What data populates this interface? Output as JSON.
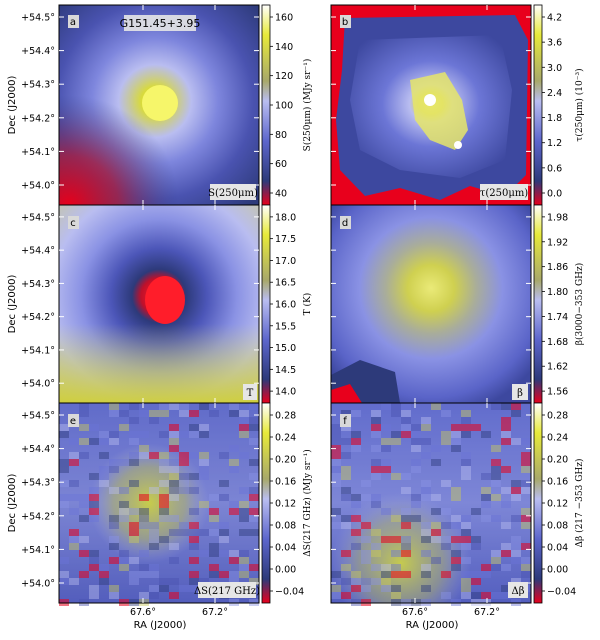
{
  "figure": {
    "source_label": "G151.45+3.95",
    "axes": {
      "ra_label": "RA (J2000)",
      "dec_label": "Dec (J2000)",
      "ra_ticks": [
        "67.6°",
        "67.2°"
      ],
      "dec_ticks": [
        "+54.5°",
        "+54.4°",
        "+54.3°",
        "+54.2°",
        "+54.1°",
        "+54.0°"
      ]
    },
    "panels": [
      {
        "id": "a",
        "letter": "a",
        "corner_label": "S(250μm)",
        "colorbar_label": "S(250μm) (MJy sr⁻¹)",
        "colorbar_ticks": [
          "160",
          "140",
          "120",
          "100",
          "80",
          "60",
          "40"
        ],
        "cmap": "a"
      },
      {
        "id": "b",
        "letter": "b",
        "corner_label": "τ(250μm)",
        "colorbar_label": "τ(250μm) (10⁻³)",
        "colorbar_ticks": [
          "4.2",
          "3.6",
          "3.0",
          "2.4",
          "1.8",
          "1.2",
          "0.6",
          "0.0"
        ],
        "cmap": "b"
      },
      {
        "id": "c",
        "letter": "c",
        "corner_label": "T",
        "colorbar_label": "T (K)",
        "colorbar_ticks": [
          "18.0",
          "17.5",
          "17.0",
          "16.5",
          "16.0",
          "15.5",
          "15.0",
          "14.5",
          "14.0"
        ],
        "cmap": "c"
      },
      {
        "id": "d",
        "letter": "d",
        "corner_label": "β",
        "colorbar_label": "β(3000−353 GHz)",
        "colorbar_ticks": [
          "1.98",
          "1.92",
          "1.86",
          "1.80",
          "1.74",
          "1.68",
          "1.62",
          "1.56"
        ],
        "cmap": "d"
      },
      {
        "id": "e",
        "letter": "e",
        "corner_label": "ΔS(217 GHz)",
        "colorbar_label": "ΔS(217 GHz) (MJy sr⁻¹)",
        "colorbar_ticks": [
          "0.28",
          "0.24",
          "0.20",
          "0.16",
          "0.12",
          "0.08",
          "0.04",
          "0.00",
          "−0.04"
        ],
        "cmap": "e"
      },
      {
        "id": "f",
        "letter": "f",
        "corner_label": "Δβ",
        "colorbar_label": "Δβ (217 −353 GHz)",
        "colorbar_ticks": [
          "0.28",
          "0.24",
          "0.20",
          "0.16",
          "0.12",
          "0.08",
          "0.04",
          "0.00",
          "−0.04"
        ],
        "cmap": "e"
      }
    ],
    "colors": {
      "red": "#e8001c",
      "navy": "#2d3a7a",
      "blue": "#6a74d8",
      "lavender": "#b9bdf0",
      "khaki": "#a8a86a",
      "yellow": "#e7ea3a",
      "white": "#ffffff"
    }
  }
}
